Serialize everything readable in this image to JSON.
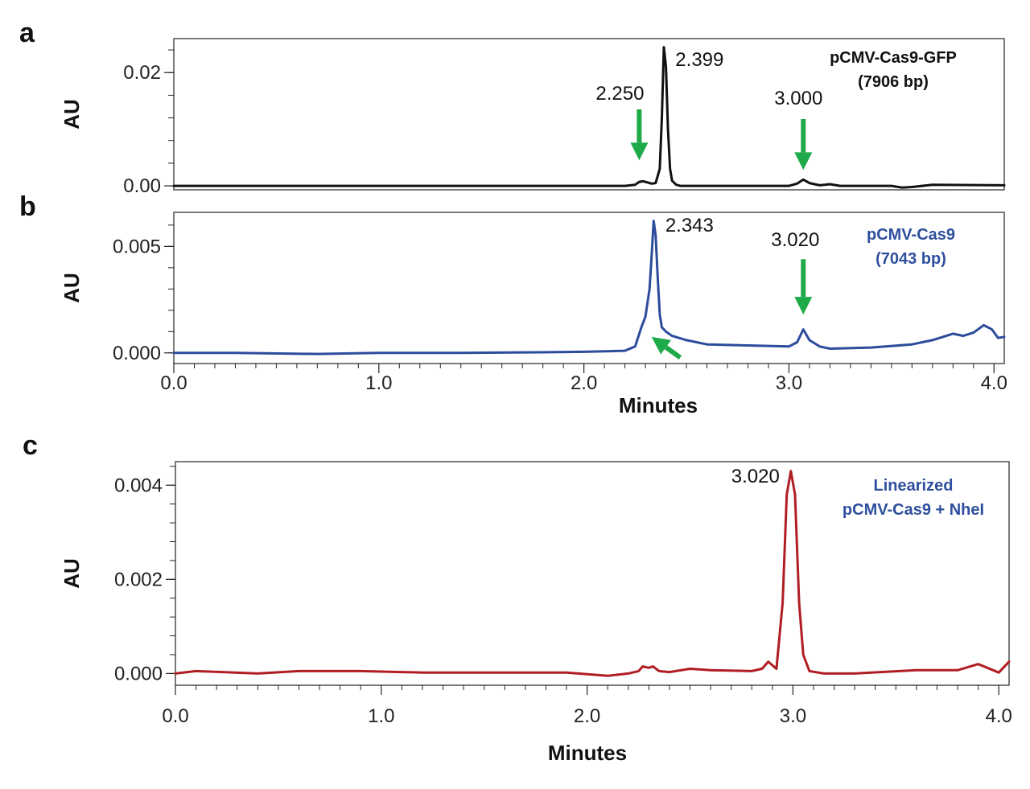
{
  "colors": {
    "trace_a": "#111111",
    "trace_b": "#2b4c9b",
    "trace_c": "#b01e23",
    "arrow": "#1faa4a",
    "label_a": "#111111",
    "label_b": "#2f4f9e",
    "label_c": "#2f4f9e"
  },
  "chart_data": [
    {
      "panel": "a",
      "type": "line",
      "ylabel": "AU",
      "xlabel": "",
      "xlim": [
        0,
        4.05
      ],
      "ylim": [
        -0.0007,
        0.026
      ],
      "yticks": [
        0,
        0.02
      ],
      "ytick_labels": [
        "0.00",
        "0.02"
      ],
      "sample_label": [
        "pCMV-Cas9-GFP",
        "(7906 bp)"
      ],
      "peak_labels": [
        {
          "text": "2.399",
          "x": 2.399,
          "y": 0.0245
        },
        {
          "text": "2.250",
          "x": 2.25,
          "y": 0.0008
        },
        {
          "text": "3.000",
          "x": 3.07,
          "y": 0.0011
        }
      ],
      "arrows": [
        {
          "x": 2.27,
          "y_from": 0.0135,
          "y_to": 0.0045
        },
        {
          "x": 3.07,
          "y_from": 0.0118,
          "y_to": 0.0028
        }
      ],
      "series": [
        {
          "x": [
            0,
            0.5,
            1.0,
            1.5,
            2.0,
            2.2,
            2.25,
            2.27,
            2.29,
            2.31,
            2.33,
            2.35,
            2.37,
            2.38,
            2.39,
            2.4,
            2.41,
            2.42,
            2.43,
            2.45,
            2.47,
            2.5,
            2.7,
            2.9,
            3.0,
            3.04,
            3.07,
            3.1,
            3.15,
            3.2,
            3.25,
            3.3,
            3.5,
            3.55,
            3.6,
            3.7,
            4.05
          ],
          "y": [
            0,
            0,
            0,
            0,
            0,
            0,
            0.0002,
            0.0007,
            0.0008,
            0.0006,
            0.0004,
            0.0005,
            0.003,
            0.012,
            0.0245,
            0.021,
            0.01,
            0.003,
            0.0009,
            0.0002,
            0,
            0,
            0,
            0,
            0,
            0.0004,
            0.0011,
            0.0005,
            0.0001,
            0.0003,
            0,
            0,
            0,
            -0.0003,
            -0.0002,
            0.0002,
            0.0001
          ]
        }
      ]
    },
    {
      "panel": "b",
      "type": "line",
      "ylabel": "AU",
      "xlabel": "Minutes",
      "xlim": [
        0,
        4.05
      ],
      "ylim": [
        -0.0005,
        0.0066
      ],
      "yticks": [
        0,
        0.005
      ],
      "ytick_labels": [
        "0.000",
        "0.005"
      ],
      "xticks": [
        0,
        1,
        2,
        3,
        4
      ],
      "xtick_labels": [
        "0.0",
        "1.0",
        "2.0",
        "3.0",
        "4.0"
      ],
      "sample_label": [
        "pCMV-Cas9",
        "(7043 bp)"
      ],
      "peak_labels": [
        {
          "text": "2.343",
          "x": 2.35,
          "y": 0.0062
        },
        {
          "text": "3.020",
          "x": 3.07,
          "y": 0.0011
        }
      ],
      "arrows": [
        {
          "x": 3.07,
          "y_from": 0.0044,
          "y_to": 0.0018
        },
        {
          "x_from": 2.47,
          "x_to": 2.33,
          "y_from": -0.00022,
          "y_to": 0.00075
        }
      ],
      "series": [
        {
          "x": [
            0,
            0.3,
            0.7,
            1.0,
            1.4,
            1.8,
            2.0,
            2.2,
            2.25,
            2.28,
            2.3,
            2.32,
            2.33,
            2.34,
            2.35,
            2.36,
            2.37,
            2.38,
            2.4,
            2.43,
            2.5,
            2.6,
            2.8,
            3.0,
            3.04,
            3.07,
            3.1,
            3.15,
            3.2,
            3.4,
            3.6,
            3.7,
            3.8,
            3.85,
            3.9,
            3.95,
            3.99,
            4.02,
            4.05
          ],
          "y": [
            0,
            0,
            -5e-05,
            0,
            0,
            3e-05,
            5e-05,
            0.0001,
            0.0003,
            0.0012,
            0.0017,
            0.003,
            0.0045,
            0.0062,
            0.0055,
            0.0035,
            0.0018,
            0.0012,
            0.001,
            0.0008,
            0.0006,
            0.0004,
            0.00035,
            0.0003,
            0.0005,
            0.0011,
            0.0006,
            0.0003,
            0.0002,
            0.00025,
            0.0004,
            0.0006,
            0.0009,
            0.0008,
            0.00095,
            0.0013,
            0.0011,
            0.0007,
            0.00075
          ]
        }
      ]
    },
    {
      "panel": "c",
      "type": "line",
      "ylabel": "AU",
      "xlabel": "Minutes",
      "xlim": [
        0,
        4.05
      ],
      "ylim": [
        -0.00025,
        0.0045
      ],
      "yticks": [
        0,
        0.002,
        0.004
      ],
      "ytick_labels": [
        "0.000",
        "0.002",
        "0.004"
      ],
      "xticks": [
        0,
        1,
        2,
        3,
        4
      ],
      "xtick_labels": [
        "0.0",
        "1.0",
        "2.0",
        "3.0",
        "4.0"
      ],
      "sample_label": [
        "Linearized",
        "pCMV-Cas9 + NheI"
      ],
      "peak_labels": [
        {
          "text": "3.020",
          "x": 2.99,
          "y": 0.0043
        }
      ],
      "arrows": [],
      "series": [
        {
          "x": [
            0,
            0.1,
            0.4,
            0.6,
            0.9,
            1.2,
            1.5,
            1.9,
            2.1,
            2.2,
            2.25,
            2.27,
            2.3,
            2.32,
            2.35,
            2.4,
            2.5,
            2.6,
            2.8,
            2.85,
            2.88,
            2.92,
            2.95,
            2.97,
            2.99,
            3.01,
            3.03,
            3.05,
            3.08,
            3.15,
            3.3,
            3.6,
            3.8,
            3.9,
            4.0,
            4.05
          ],
          "y": [
            0,
            5e-05,
            0,
            5e-05,
            5e-05,
            2e-05,
            2e-05,
            2e-05,
            -5e-05,
            0,
            5e-05,
            0.00015,
            0.00012,
            0.00015,
            5e-05,
            3e-05,
            0.0001,
            7e-05,
            5e-05,
            0.0001,
            0.00025,
            0.0001,
            0.0015,
            0.0038,
            0.0043,
            0.0038,
            0.0015,
            0.0004,
            5e-05,
            0,
            0,
            7e-05,
            7e-05,
            0.0002,
            2e-05,
            0.00025
          ]
        }
      ]
    }
  ],
  "panels": {
    "a": {
      "letter": "a"
    },
    "b": {
      "letter": "b",
      "xlabel": "Minutes"
    },
    "c": {
      "letter": "c",
      "xlabel": "Minutes"
    }
  }
}
